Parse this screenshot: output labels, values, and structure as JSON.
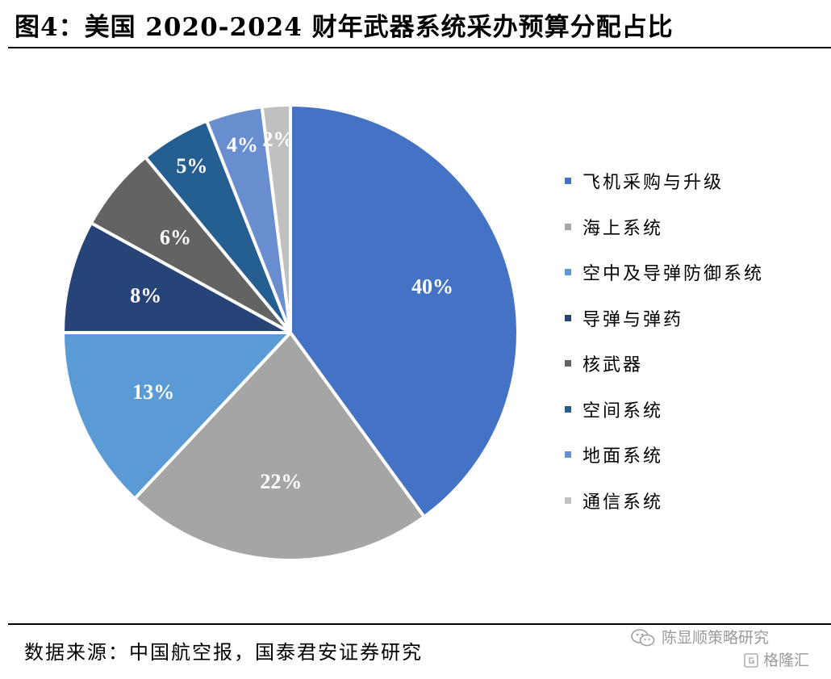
{
  "title": "图4：美国 2020-2024 财年武器系统采办预算分配占比",
  "source": "数据来源：中国航空报，国泰君安证券研究",
  "watermark": {
    "line1": "陈显顺策略研究",
    "line2": "格隆汇",
    "icon1": "wechat-icon",
    "icon2": "gelonghui-logo-icon"
  },
  "chart_data": {
    "type": "pie",
    "title": "",
    "legend_position": "right",
    "start_angle": "12 o'clock, clockwise",
    "slices": [
      {
        "label": "飞机采购与升级",
        "value": 40,
        "value_label": "40%",
        "color": "#4472C4"
      },
      {
        "label": "海上系统",
        "value": 22,
        "value_label": "22%",
        "color": "#A5A5A5"
      },
      {
        "label": "空中及导弹防御系统",
        "value": 13,
        "value_label": "13%",
        "color": "#5B9BD5"
      },
      {
        "label": "导弹与弹药",
        "value": 8,
        "value_label": "8%",
        "color": "#264478"
      },
      {
        "label": "核武器",
        "value": 6,
        "value_label": "6%",
        "color": "#636363"
      },
      {
        "label": "空间系统",
        "value": 5,
        "value_label": "5%",
        "color": "#255E91"
      },
      {
        "label": "地面系统",
        "value": 4,
        "value_label": "4%",
        "color": "#698ED0"
      },
      {
        "label": "通信系统",
        "value": 2,
        "value_label": "2%",
        "color": "#C0C0C0"
      }
    ]
  }
}
